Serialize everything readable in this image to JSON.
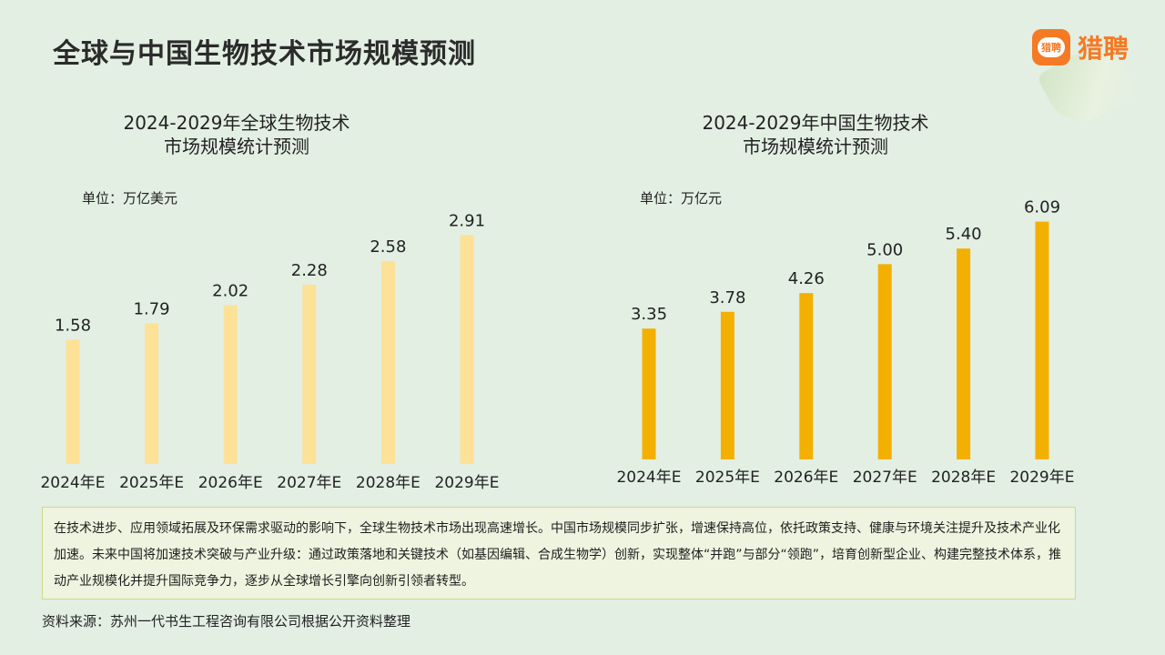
{
  "page": {
    "title": "全球与中国生物技术市场规模预测",
    "brand": {
      "name": "猎聘",
      "badge_text": "猎聘",
      "accent": "#f47a25"
    }
  },
  "summary": "在技术进步、应用领域拓展及环保需求驱动的影响下，全球生物技术市场出现高速增长。中国市场规模同步扩张，增速保持高位，依托政策支持、健康与环境关注提升及技术产业化加速。未来中国将加速技术突破与产业升级：通过政策落地和关键技术（如基因编辑、合成生物学）创新，实现整体“并跑”与部分“领跑”，培育创新型企业、构建完整技术体系，推动产业规模化并提升国际竞争力，逐步从全球增长引擎向创新引领者转型。",
  "source": "资料来源：苏州一代书生工程咨询有限公司根据公开资料整理",
  "chart_data": [
    {
      "type": "bar",
      "title_line1": "2024-2029年全球生物技术",
      "title_line2": "市场规模统计预测",
      "unit_label": "单位：万亿美元",
      "categories": [
        "2024年E",
        "2025年E",
        "2026年E",
        "2027年E",
        "2028年E",
        "2029年E"
      ],
      "values": [
        1.58,
        1.79,
        2.02,
        2.28,
        2.58,
        2.91
      ],
      "value_labels": [
        "1.58",
        "1.79",
        "2.02",
        "2.28",
        "2.58",
        "2.91"
      ],
      "ylim": [
        0,
        3.1
      ],
      "color": "#fde197",
      "grid": false
    },
    {
      "type": "bar",
      "title_line1": "2024-2029年中国生物技术",
      "title_line2": "市场规模统计预测",
      "unit_label": "单位：万亿元",
      "categories": [
        "2024年E",
        "2025年E",
        "2026年E",
        "2027年E",
        "2028年E",
        "2029年E"
      ],
      "values": [
        3.35,
        3.78,
        4.26,
        5.0,
        5.4,
        6.09
      ],
      "value_labels": [
        "3.35",
        "3.78",
        "4.26",
        "5.00",
        "5.40",
        "6.09"
      ],
      "ylim": [
        0,
        6.5
      ],
      "color": "#f3b000",
      "grid": false
    }
  ]
}
